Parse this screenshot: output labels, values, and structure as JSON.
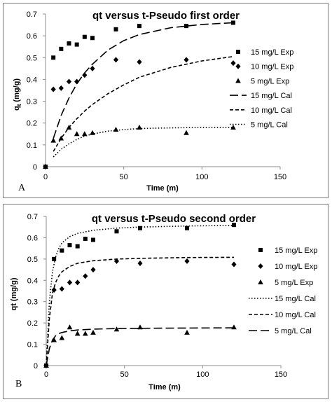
{
  "chart_data": [
    {
      "type": "scatter",
      "panel_label": "A",
      "title": "qt versus t-Pseudo first order",
      "xlabel": "Time (m)",
      "ylabel": "qt (mg/g)",
      "ylabel_main": "q",
      "ylabel_sub": "t",
      "ylabel_rest": " (mg/g)",
      "xlim": [
        0,
        150
      ],
      "ylim": [
        0,
        0.7
      ],
      "x_ticks": [
        "0",
        "50",
        "100",
        "150"
      ],
      "y_ticks": [
        "0",
        "0.1",
        "0.2",
        "0.3",
        "0.4",
        "0.5",
        "0.6",
        "0.7"
      ],
      "grid": false,
      "legend_position": "right",
      "series": [
        {
          "name": "15 mg/L Exp",
          "kind": "scatter",
          "marker": "square",
          "x": [
            0,
            5,
            10,
            15,
            20,
            25,
            30,
            45,
            60,
            90,
            120
          ],
          "y": [
            0.0,
            0.5,
            0.54,
            0.565,
            0.56,
            0.595,
            0.59,
            0.63,
            0.645,
            0.645,
            0.66
          ]
        },
        {
          "name": "10 mg/L Exp",
          "kind": "scatter",
          "marker": "diamond",
          "x": [
            0,
            5,
            10,
            15,
            20,
            25,
            30,
            45,
            60,
            90,
            120
          ],
          "y": [
            0.0,
            0.355,
            0.36,
            0.39,
            0.39,
            0.42,
            0.45,
            0.49,
            0.48,
            0.49,
            0.475
          ]
        },
        {
          "name": "5 mg/L Exp",
          "kind": "scatter",
          "marker": "triangle",
          "x": [
            0,
            5,
            10,
            15,
            20,
            25,
            30,
            45,
            60,
            90,
            120
          ],
          "y": [
            0.0,
            0.12,
            0.13,
            0.18,
            0.15,
            0.15,
            0.155,
            0.17,
            0.18,
            0.155,
            0.18
          ]
        },
        {
          "name": "15 mg/L Cal",
          "kind": "line",
          "dash": "12,5",
          "x": [
            5,
            10,
            15,
            20,
            25,
            30,
            40,
            50,
            60,
            80,
            100,
            120
          ],
          "y": [
            0.13,
            0.235,
            0.315,
            0.38,
            0.43,
            0.47,
            0.535,
            0.578,
            0.606,
            0.637,
            0.652,
            0.66
          ]
        },
        {
          "name": "10 mg/L Cal",
          "kind": "line",
          "dash": "5,3",
          "x": [
            5,
            10,
            15,
            20,
            25,
            30,
            40,
            50,
            60,
            80,
            100,
            120
          ],
          "y": [
            0.07,
            0.13,
            0.18,
            0.22,
            0.255,
            0.285,
            0.335,
            0.375,
            0.41,
            0.455,
            0.485,
            0.505
          ]
        },
        {
          "name": "5 mg/L Cal",
          "kind": "line",
          "dash": "1.5,2.5",
          "x": [
            5,
            10,
            15,
            20,
            25,
            30,
            40,
            50,
            60,
            80,
            100,
            120
          ],
          "y": [
            0.045,
            0.08,
            0.105,
            0.125,
            0.14,
            0.15,
            0.163,
            0.17,
            0.175,
            0.178,
            0.18,
            0.18
          ]
        }
      ]
    },
    {
      "type": "scatter",
      "panel_label": "B",
      "title": "qt versus t-Pseudo second order",
      "xlabel": "Time (m)",
      "ylabel": "qt (mg/g)",
      "xlim": [
        0,
        150
      ],
      "ylim": [
        0,
        0.7
      ],
      "x_ticks": [
        "0",
        "50",
        "100",
        "150"
      ],
      "y_ticks": [
        "0",
        "0.1",
        "0.2",
        "0.3",
        "0.4",
        "0.5",
        "0.6",
        "0.7"
      ],
      "grid": false,
      "legend_position": "right",
      "series": [
        {
          "name": "15 mg/L Exp",
          "kind": "scatter",
          "marker": "square",
          "x": [
            0,
            5,
            10,
            15,
            20,
            25,
            30,
            45,
            60,
            90,
            120
          ],
          "y": [
            0.0,
            0.5,
            0.54,
            0.565,
            0.56,
            0.595,
            0.59,
            0.63,
            0.645,
            0.645,
            0.66
          ]
        },
        {
          "name": "10 mg/L Exp",
          "kind": "scatter",
          "marker": "diamond",
          "x": [
            0,
            5,
            10,
            15,
            20,
            25,
            30,
            45,
            60,
            90,
            120
          ],
          "y": [
            0.0,
            0.355,
            0.36,
            0.39,
            0.39,
            0.42,
            0.45,
            0.49,
            0.48,
            0.49,
            0.475
          ]
        },
        {
          "name": "5 mg/L Exp",
          "kind": "scatter",
          "marker": "triangle",
          "x": [
            0,
            5,
            10,
            15,
            20,
            25,
            30,
            45,
            60,
            90,
            120
          ],
          "y": [
            0.0,
            0.12,
            0.13,
            0.18,
            0.15,
            0.15,
            0.155,
            0.17,
            0.18,
            0.155,
            0.18
          ]
        },
        {
          "name": "15 mg/L Cal",
          "kind": "line",
          "dash": "1.5,2.5",
          "x": [
            0,
            2,
            4,
            6,
            8,
            10,
            15,
            20,
            30,
            45,
            60,
            90,
            120
          ],
          "y": [
            0,
            0.3,
            0.44,
            0.51,
            0.55,
            0.575,
            0.605,
            0.62,
            0.635,
            0.645,
            0.65,
            0.655,
            0.658
          ]
        },
        {
          "name": "10 mg/L Cal",
          "kind": "line",
          "dash": "5,3",
          "x": [
            0,
            2,
            4,
            6,
            8,
            10,
            15,
            20,
            30,
            45,
            60,
            90,
            120
          ],
          "y": [
            0,
            0.22,
            0.34,
            0.39,
            0.42,
            0.44,
            0.465,
            0.48,
            0.492,
            0.5,
            0.503,
            0.507,
            0.508
          ]
        },
        {
          "name": "5 mg/L Cal",
          "kind": "line",
          "dash": "12,5",
          "x": [
            0,
            2,
            4,
            6,
            8,
            10,
            15,
            20,
            30,
            45,
            60,
            90,
            120
          ],
          "y": [
            0,
            0.08,
            0.12,
            0.14,
            0.15,
            0.155,
            0.163,
            0.167,
            0.171,
            0.174,
            0.175,
            0.176,
            0.177
          ]
        }
      ]
    }
  ]
}
